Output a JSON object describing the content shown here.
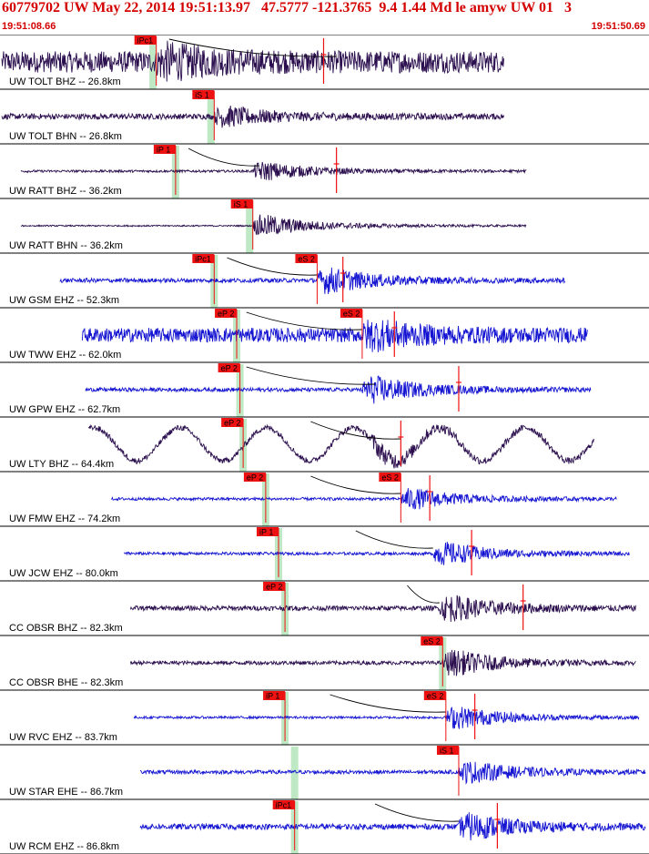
{
  "header": {
    "title": "60779702 UW May 22, 2014 19:51:13.97   47.5777 -121.3765  9.4 1.44 Md le amyw UW 01   3",
    "start_time": "19:51:08.66",
    "end_time": "19:51:50.69"
  },
  "colors": {
    "header_text": "#d40000",
    "trace_bh": "#2b0f4e",
    "trace_eh": "#1414d2",
    "pick_label_bg": "#ee1111",
    "window_band": "#bfe8c4",
    "travel_curve": "#000000",
    "separator": "#000000"
  },
  "chart_data": {
    "type": "line",
    "title": "60779702 UW May 22, 2014 19:51:13.97   47.5777 -121.3765  9.4 1.44 Md le amyw UW 01   3",
    "x_range": [
      "19:51:08.66",
      "19:51:50.69"
    ],
    "traces": [
      {
        "label": "UW TOLT BHZ -- 26.8km",
        "kind": "BH",
        "start": 0.0,
        "end": 0.78,
        "amp": 0.55,
        "noise": 0.45,
        "onset": 0.24,
        "picks": [
          {
            "text": "iPc1",
            "t": 0.24
          }
        ],
        "band": 0.235,
        "red_marks": [
          0.5
        ],
        "curve": [
          0.26,
          0.52
        ],
        "wave": 0
      },
      {
        "label": "UW TOLT BHN -- 26.8km",
        "kind": "BH",
        "start": 0.0,
        "end": 0.78,
        "amp": 0.45,
        "noise": 0.12,
        "onset": 0.33,
        "picks": [
          {
            "text": "iS 1",
            "t": 0.33
          }
        ],
        "band": 0.325,
        "red_marks": [],
        "curve": null,
        "wave": 0
      },
      {
        "label": "UW RATT BHZ -- 36.2km",
        "kind": "BH",
        "start": 0.03,
        "end": 0.815,
        "amp": 0.45,
        "noise": 0.05,
        "onset": 0.39,
        "picks": [
          {
            "text": "iP 1",
            "t": 0.27
          }
        ],
        "band": 0.27,
        "red_marks": [
          0.52
        ],
        "curve": [
          0.29,
          0.4
        ],
        "wave": 0
      },
      {
        "label": "UW RATT BHN -- 36.2km",
        "kind": "BH",
        "start": 0.03,
        "end": 0.815,
        "amp": 0.55,
        "noise": 0.03,
        "onset": 0.39,
        "picks": [
          {
            "text": "iS 1",
            "t": 0.39
          }
        ],
        "band": 0.385,
        "red_marks": [],
        "curve": null,
        "wave": 0
      },
      {
        "label": "UW GSM EHZ -- 52.3km",
        "kind": "EH",
        "start": 0.09,
        "end": 0.875,
        "amp": 0.6,
        "noise": 0.09,
        "onset": 0.49,
        "picks": [
          {
            "text": "iPc1",
            "t": 0.33
          },
          {
            "text": "eS 2",
            "t": 0.49
          }
        ],
        "band": 0.33,
        "red_marks": [
          0.53
        ],
        "curve": [
          0.35,
          0.49
        ],
        "wave": 0
      },
      {
        "label": "UW TWW EHZ -- 62.0km",
        "kind": "EH",
        "start": 0.125,
        "end": 0.91,
        "amp": 0.55,
        "noise": 0.3,
        "onset": 0.56,
        "picks": [
          {
            "text": "eP 2",
            "t": 0.365
          },
          {
            "text": "eS 2",
            "t": 0.56
          }
        ],
        "band": 0.365,
        "red_marks": [
          0.61
        ],
        "curve": [
          0.38,
          0.56
        ],
        "wave": 0
      },
      {
        "label": "UW GPW EHZ -- 62.7km",
        "kind": "EH",
        "start": 0.13,
        "end": 0.915,
        "amp": 0.65,
        "noise": 0.08,
        "onset": 0.56,
        "picks": [
          {
            "text": "eP 2",
            "t": 0.37
          }
        ],
        "band": 0.37,
        "red_marks": [
          0.71
        ],
        "curve": [
          0.38,
          0.58
        ],
        "wave": 0
      },
      {
        "label": "UW LTY BHZ -- 64.4km",
        "kind": "BH",
        "start": 0.135,
        "end": 0.92,
        "amp": 0.35,
        "noise": 0.12,
        "onset": 0.57,
        "picks": [
          {
            "text": "eP 2",
            "t": 0.375
          }
        ],
        "band": 0.375,
        "red_marks": [
          0.62
        ],
        "curve": [
          0.48,
          0.62
        ],
        "wave": 0.7
      },
      {
        "label": "UW FMW EHZ -- 74.2km",
        "kind": "EH",
        "start": 0.17,
        "end": 0.955,
        "amp": 0.5,
        "noise": 0.06,
        "onset": 0.62,
        "picks": [
          {
            "text": "eP 2",
            "t": 0.41
          },
          {
            "text": "eS 2",
            "t": 0.62
          }
        ],
        "band": 0.41,
        "red_marks": [
          0.665
        ],
        "curve": [
          0.48,
          0.62
        ],
        "wave": 0
      },
      {
        "label": "UW JCW EHZ -- 80.0km",
        "kind": "EH",
        "start": 0.19,
        "end": 0.975,
        "amp": 0.55,
        "noise": 0.06,
        "onset": 0.67,
        "picks": [
          {
            "text": "iP 1",
            "t": 0.43
          }
        ],
        "band": 0.43,
        "red_marks": [
          0.73
        ],
        "curve": [
          0.55,
          0.67
        ],
        "wave": 0
      },
      {
        "label": "CC OBSR BHZ -- 82.3km",
        "kind": "BH",
        "start": 0.2,
        "end": 0.985,
        "amp": 0.6,
        "noise": 0.1,
        "onset": 0.68,
        "picks": [
          {
            "text": "eP 2",
            "t": 0.44
          }
        ],
        "band": 0.44,
        "red_marks": [
          0.81
        ],
        "curve": [
          0.63,
          0.68
        ],
        "wave": 0
      },
      {
        "label": "CC OBSR BHE -- 82.3km",
        "kind": "BH",
        "start": 0.2,
        "end": 0.985,
        "amp": 0.6,
        "noise": 0.08,
        "onset": 0.685,
        "picks": [
          {
            "text": "eS 2",
            "t": 0.685
          }
        ],
        "band": 0.685,
        "red_marks": [],
        "curve": null,
        "wave": 0
      },
      {
        "label": "UW RVC EHZ -- 83.7km",
        "kind": "EH",
        "start": 0.205,
        "end": 0.99,
        "amp": 0.55,
        "noise": 0.05,
        "onset": 0.69,
        "picks": [
          {
            "text": "iP 1",
            "t": 0.44
          },
          {
            "text": "eS 2",
            "t": 0.69
          }
        ],
        "band": 0.44,
        "red_marks": [
          0.735
        ],
        "curve": [
          0.51,
          0.69
        ],
        "wave": 0
      },
      {
        "label": "UW STAR EHE -- 86.7km",
        "kind": "EH",
        "start": 0.215,
        "end": 1.0,
        "amp": 0.5,
        "noise": 0.08,
        "onset": 0.71,
        "picks": [
          {
            "text": "iS 1",
            "t": 0.71
          }
        ],
        "band": 0.455,
        "red_marks": [],
        "curve": null,
        "wave": 0
      },
      {
        "label": "UW RCM EHZ -- 86.8km",
        "kind": "EH",
        "start": 0.215,
        "end": 1.0,
        "amp": 0.6,
        "noise": 0.12,
        "onset": 0.71,
        "picks": [
          {
            "text": "iPc1",
            "t": 0.455
          }
        ],
        "band": 0.455,
        "red_marks": [
          0.77
        ],
        "curve": [
          0.58,
          0.71
        ],
        "wave": 0
      }
    ]
  }
}
